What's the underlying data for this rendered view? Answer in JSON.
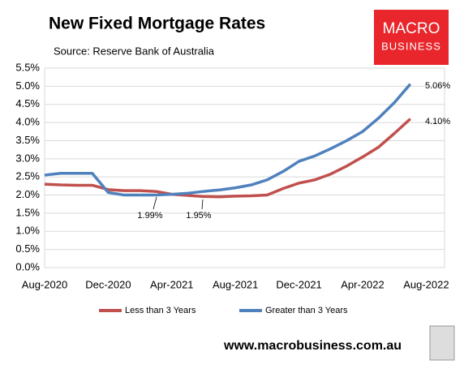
{
  "chart_data": {
    "type": "line",
    "title": "New Fixed Mortgage Rates",
    "subtitle": "Source: Reserve Bank of Australia",
    "logo": [
      "MACRO",
      "BUSINESS"
    ],
    "footer": "www.macrobusiness.com.au",
    "categories": [
      "Aug-2020",
      null,
      null,
      null,
      "Dec-2020",
      null,
      null,
      null,
      "Apr-2021",
      null,
      null,
      null,
      "Aug-2021",
      null,
      null,
      null,
      "Dec-2021",
      null,
      null,
      null,
      "Apr-2022",
      null,
      null,
      null,
      "Aug-2022"
    ],
    "series": [
      {
        "name": "Less than 3 Years",
        "color": "#c0504d",
        "values": [
          2.3,
          2.28,
          2.27,
          2.27,
          2.15,
          2.12,
          2.12,
          2.1,
          2.02,
          1.99,
          1.96,
          1.95,
          1.97,
          1.98,
          2.0,
          2.18,
          2.33,
          2.42,
          2.58,
          2.8,
          3.05,
          3.32,
          3.7,
          4.1,
          null
        ]
      },
      {
        "name": "Greater than 3 Years",
        "color": "#4f81bd",
        "values": [
          2.55,
          2.6,
          2.6,
          2.6,
          2.07,
          2.0,
          2.0,
          2.0,
          2.02,
          2.05,
          2.1,
          2.14,
          2.2,
          2.28,
          2.42,
          2.65,
          2.93,
          3.08,
          3.28,
          3.5,
          3.75,
          4.12,
          4.55,
          5.06,
          null
        ]
      }
    ],
    "annotations": [
      "1.99%",
      "1.95%",
      "5.06%",
      "4.10%"
    ],
    "ylim": [
      0,
      5.5
    ],
    "yticks": [
      {
        "value": 0,
        "label": "0.0%"
      },
      {
        "value": 0.5,
        "label": "0.5%"
      },
      {
        "value": 1,
        "label": "1.0%"
      },
      {
        "value": 1.5,
        "label": "1.5%"
      },
      {
        "value": 2,
        "label": "2.0%"
      },
      {
        "value": 2.5,
        "label": "2.5%"
      },
      {
        "value": 3,
        "label": "3.0%"
      },
      {
        "value": 3.5,
        "label": "3.5%"
      },
      {
        "value": 4,
        "label": "4.0%"
      },
      {
        "value": 4.5,
        "label": "4.5%"
      },
      {
        "value": 5,
        "label": "5.0%"
      },
      {
        "value": 5.5,
        "label": "5.5%"
      }
    ],
    "grid": true,
    "legend": "bottom"
  }
}
